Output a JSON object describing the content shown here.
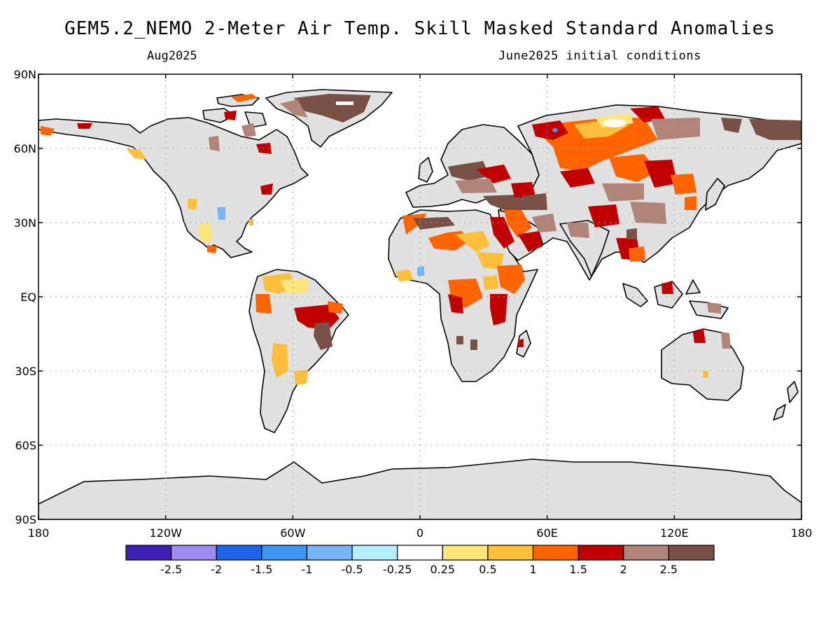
{
  "title": "GEM5.2_NEMO 2-Meter Air Temp. Skill Masked Standard Anomalies",
  "subtitle_left": "Aug2025",
  "subtitle_right": "June2025 initial conditions",
  "axes": {
    "lat_labels": [
      {
        "value": 90,
        "text": "90N"
      },
      {
        "value": 60,
        "text": "60N"
      },
      {
        "value": 30,
        "text": "30N"
      },
      {
        "value": 0,
        "text": "EQ"
      },
      {
        "value": -30,
        "text": "30S"
      },
      {
        "value": -60,
        "text": "60S"
      },
      {
        "value": -90,
        "text": "90S"
      }
    ],
    "lon_labels": [
      {
        "value": -180,
        "text": "180"
      },
      {
        "value": -120,
        "text": "120W"
      },
      {
        "value": -60,
        "text": "60W"
      },
      {
        "value": 0,
        "text": "0"
      },
      {
        "value": 60,
        "text": "60E"
      },
      {
        "value": 120,
        "text": "120E"
      },
      {
        "value": 180,
        "text": "180"
      }
    ],
    "lon_range": [
      -180,
      180
    ],
    "lat_range": [
      -90,
      90
    ],
    "grid": true
  },
  "colorbar": {
    "colors": [
      "#3e20b4",
      "#9f8cf2",
      "#1e64e6",
      "#3c96f0",
      "#78b4f8",
      "#b4f0fa",
      "#ffffff",
      "#ffe67c",
      "#ffbe3c",
      "#ff6400",
      "#c00000",
      "#b08478",
      "#785046"
    ],
    "labels": [
      "-2.5",
      "-2",
      "-1.5",
      "-1",
      "-0.5",
      "-0.25",
      "0.25",
      "0.5",
      "1",
      "1.5",
      "2",
      "2.5"
    ]
  },
  "colors": {
    "land_no_skill": "#e1e1e1",
    "ocean": "#ffffff",
    "coastline": "#000000",
    "grid": "#a0a0a0"
  }
}
